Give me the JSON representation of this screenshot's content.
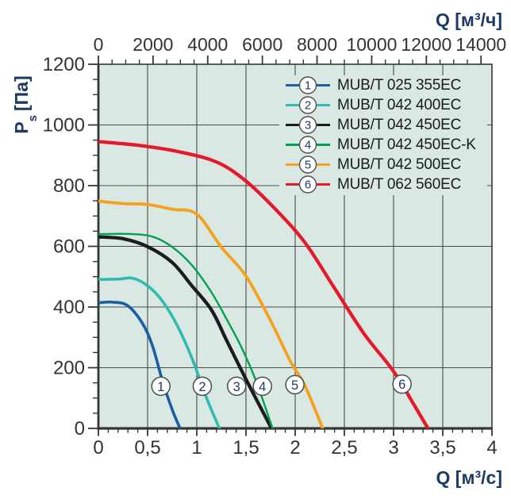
{
  "colors": {
    "background": "#d9e8e3",
    "grid": "#4a4a4a",
    "axis": "#363636",
    "tick_text": "#333333",
    "label_navy": "#1d3a66",
    "marker_ring": "#4d4d4d",
    "marker_fill": "#ffffff"
  },
  "chart_data": {
    "type": "line",
    "title": "",
    "grid": true,
    "legend_position": "top-right",
    "x_top": {
      "label": "Q [м³/ч]",
      "min": 0,
      "max": 14400,
      "major_step": 2000,
      "minor_step": 500,
      "tick_labels": [
        "0",
        "2000",
        "4000",
        "6000",
        "8000",
        "10000",
        "12000",
        "14000"
      ]
    },
    "x_bottom": {
      "label": "Q [м³/с]",
      "min": 0,
      "max": 4,
      "major_step": 0.5,
      "minor_step": 0.1,
      "tick_labels": [
        "0",
        "0,5",
        "1",
        "1,5",
        "2",
        "2,5",
        "3",
        "3,5",
        "4"
      ]
    },
    "y_axis": {
      "label_main": "P",
      "label_sub": "s",
      "label_unit": "[Па]",
      "min": 0,
      "max": 1200,
      "major_step": 200,
      "minor_step": 50,
      "tick_labels": [
        "0",
        "200",
        "400",
        "600",
        "800",
        "1000",
        "1200"
      ]
    },
    "series": [
      {
        "id": "1",
        "name": "MUB/T 025 355EC",
        "color": "#1a5fa5",
        "width": 3.6,
        "marker_q": 0.635,
        "marker_p": 139,
        "points": [
          [
            0,
            414
          ],
          [
            0.15,
            416
          ],
          [
            0.3,
            404
          ],
          [
            0.45,
            345
          ],
          [
            0.55,
            272
          ],
          [
            0.65,
            158
          ],
          [
            0.75,
            62
          ],
          [
            0.83,
            0
          ]
        ]
      },
      {
        "id": "2",
        "name": "MUB/T 042 400EC",
        "color": "#2ebcb0",
        "width": 3.6,
        "marker_q": 1.056,
        "marker_p": 139,
        "points": [
          [
            0,
            491
          ],
          [
            0.2,
            492
          ],
          [
            0.35,
            495
          ],
          [
            0.5,
            470
          ],
          [
            0.65,
            420
          ],
          [
            0.8,
            340
          ],
          [
            0.95,
            232
          ],
          [
            1.1,
            100
          ],
          [
            1.23,
            0
          ]
        ]
      },
      {
        "id": "3",
        "name": "MUB/T 042 450EC",
        "color": "#1c1c1c",
        "width": 4.3,
        "marker_q": 1.405,
        "marker_p": 139,
        "points": [
          [
            0,
            631
          ],
          [
            0.25,
            625
          ],
          [
            0.5,
            599
          ],
          [
            0.75,
            547
          ],
          [
            0.95,
            470
          ],
          [
            1.15,
            390
          ],
          [
            1.3,
            292
          ],
          [
            1.45,
            194
          ],
          [
            1.6,
            99
          ],
          [
            1.76,
            0
          ]
        ]
      },
      {
        "id": "4",
        "name": "MUB/T 042 450EC-K",
        "color": "#00a24f",
        "width": 2.4,
        "marker_q": 1.667,
        "marker_p": 139,
        "points": [
          [
            0,
            640
          ],
          [
            0.3,
            641
          ],
          [
            0.55,
            632
          ],
          [
            0.75,
            598
          ],
          [
            0.95,
            538
          ],
          [
            1.15,
            448
          ],
          [
            1.3,
            362
          ],
          [
            1.45,
            270
          ],
          [
            1.6,
            158
          ],
          [
            1.77,
            0
          ]
        ]
      },
      {
        "id": "5",
        "name": "MUB/T 042 500EC",
        "color": "#f5a11e",
        "width": 3.8,
        "marker_q": 1.997,
        "marker_p": 144,
        "points": [
          [
            0,
            749
          ],
          [
            0.25,
            741
          ],
          [
            0.5,
            738
          ],
          [
            0.75,
            722
          ],
          [
            1.0,
            706
          ],
          [
            1.25,
            597
          ],
          [
            1.5,
            502
          ],
          [
            1.75,
            355
          ],
          [
            1.95,
            222
          ],
          [
            2.1,
            140
          ],
          [
            2.28,
            0
          ]
        ]
      },
      {
        "id": "6",
        "name": "MUB/T 062 560EC",
        "color": "#e6192b",
        "width": 4.3,
        "marker_q": 3.086,
        "marker_p": 146,
        "points": [
          [
            0,
            945
          ],
          [
            0.4,
            933
          ],
          [
            0.8,
            913
          ],
          [
            1.2,
            878
          ],
          [
            1.5,
            815
          ],
          [
            1.8,
            722
          ],
          [
            2.1,
            612
          ],
          [
            2.4,
            462
          ],
          [
            2.7,
            312
          ],
          [
            3.0,
            188
          ],
          [
            3.2,
            82
          ],
          [
            3.35,
            0
          ]
        ]
      }
    ]
  }
}
